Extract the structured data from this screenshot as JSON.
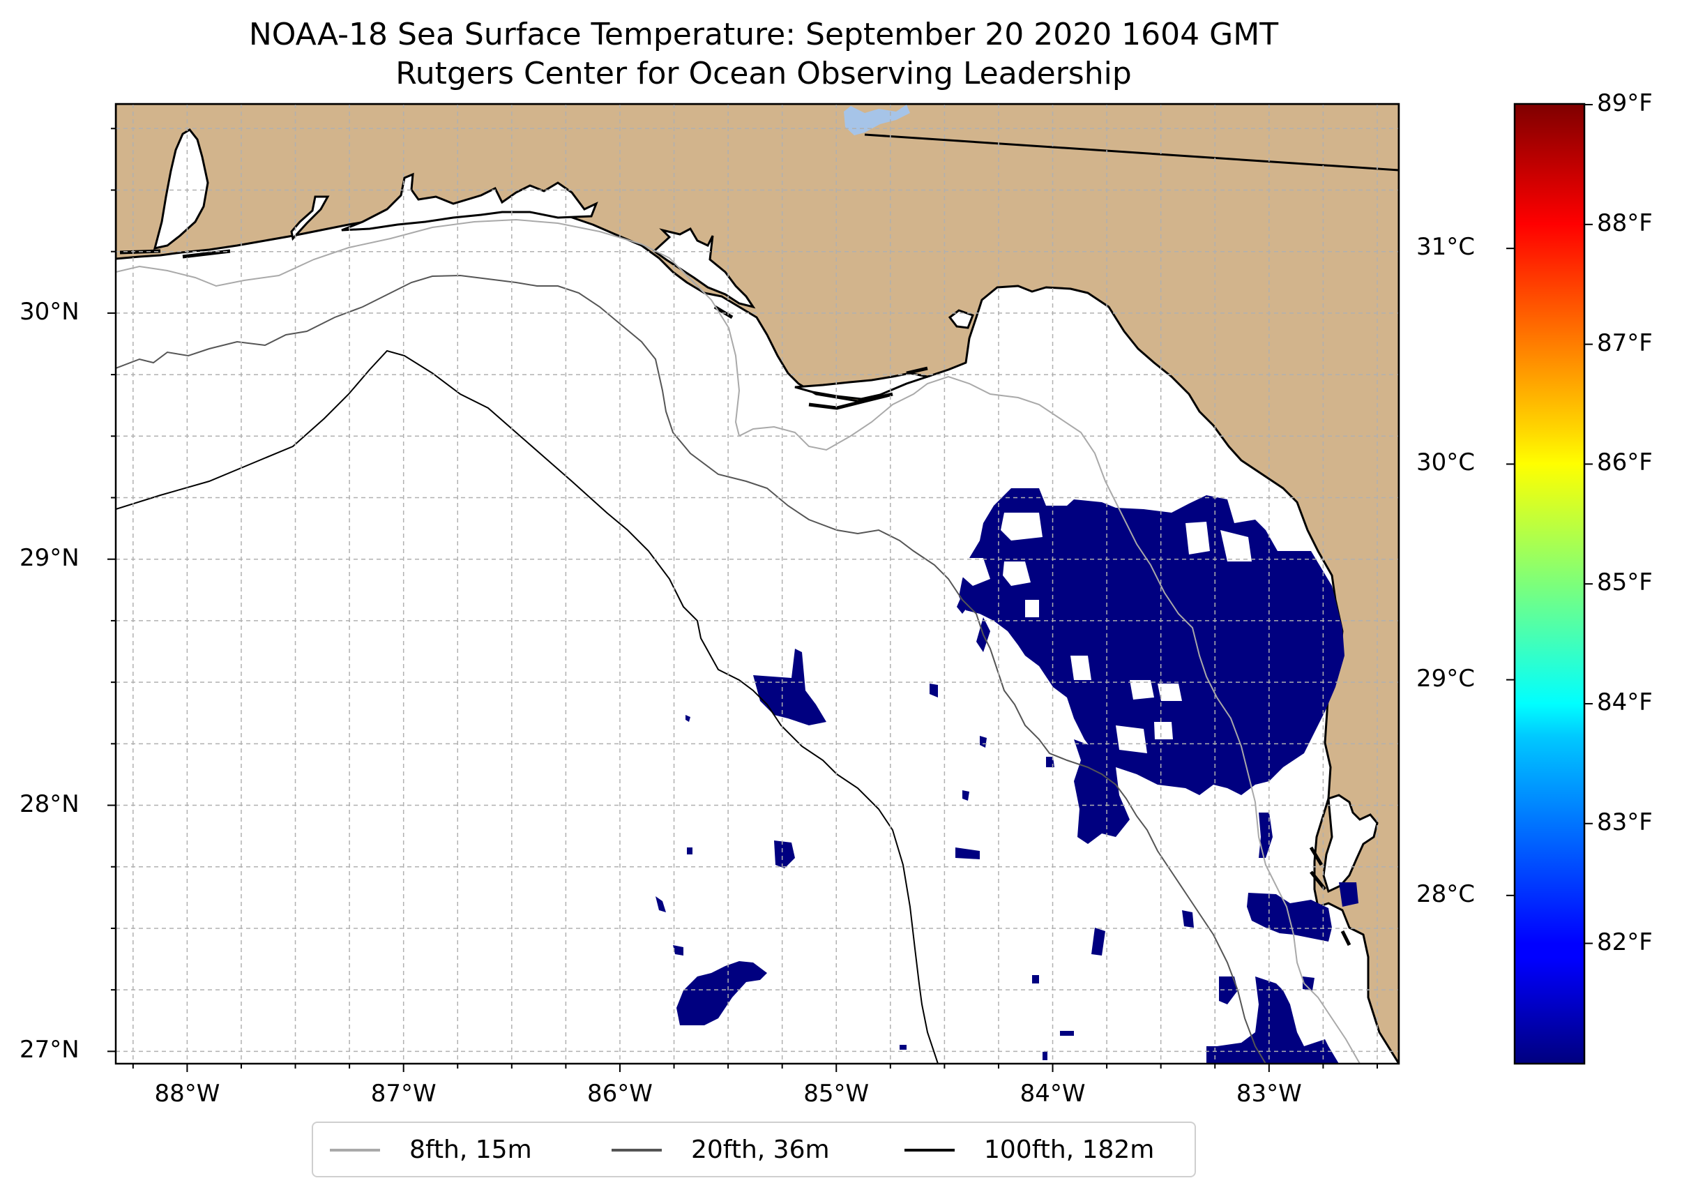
{
  "title": {
    "line1": "NOAA-18 Sea Surface Temperature: September 20 2020 1604 GMT",
    "line2": "Rutgers Center for Ocean Observing Leadership"
  },
  "map": {
    "lon_range": [
      -88.33,
      -82.4
    ],
    "lat_range": [
      26.95,
      30.85
    ],
    "colors": {
      "land": "#d2b48c",
      "water": "#ffffff",
      "sst_patches": "#000080",
      "lake": "#a6c4e8",
      "grid": "#b0b0b0"
    },
    "lat_ticks": [
      {
        "value": 30,
        "label": "30°N"
      },
      {
        "value": 29,
        "label": "29°N"
      },
      {
        "value": 28,
        "label": "28°N"
      },
      {
        "value": 27,
        "label": "27°N"
      }
    ],
    "lon_ticks": [
      {
        "value": -88,
        "label": "88°W"
      },
      {
        "value": -87,
        "label": "87°W"
      },
      {
        "value": -86,
        "label": "86°W"
      },
      {
        "value": -85,
        "label": "85°W"
      },
      {
        "value": -84,
        "label": "84°W"
      },
      {
        "value": -83,
        "label": "83°W"
      }
    ],
    "gridlines": "dashed, every 0.25 degrees"
  },
  "colorbar": {
    "colormap": "jet",
    "celsius_range": [
      27.22,
      31.67
    ],
    "celsius_ticks": [
      {
        "value": 28,
        "label": "28°C"
      },
      {
        "value": 29,
        "label": "29°C"
      },
      {
        "value": 30,
        "label": "30°C"
      },
      {
        "value": 31,
        "label": "31°C"
      }
    ],
    "fahrenheit_ticks": [
      {
        "value": 82,
        "label": "82°F"
      },
      {
        "value": 83,
        "label": "83°F"
      },
      {
        "value": 84,
        "label": "84°F"
      },
      {
        "value": 85,
        "label": "85°F"
      },
      {
        "value": 86,
        "label": "86°F"
      },
      {
        "value": 87,
        "label": "87°F"
      },
      {
        "value": 88,
        "label": "88°F"
      },
      {
        "value": 89,
        "label": "89°F"
      }
    ]
  },
  "legend": {
    "placement": "bottom center",
    "items": [
      {
        "label": "8fth, 15m",
        "color": "#a9a9a9"
      },
      {
        "label": "20fth, 36m",
        "color": "#555555"
      },
      {
        "label": "100fth, 182m",
        "color": "#000000"
      }
    ]
  }
}
